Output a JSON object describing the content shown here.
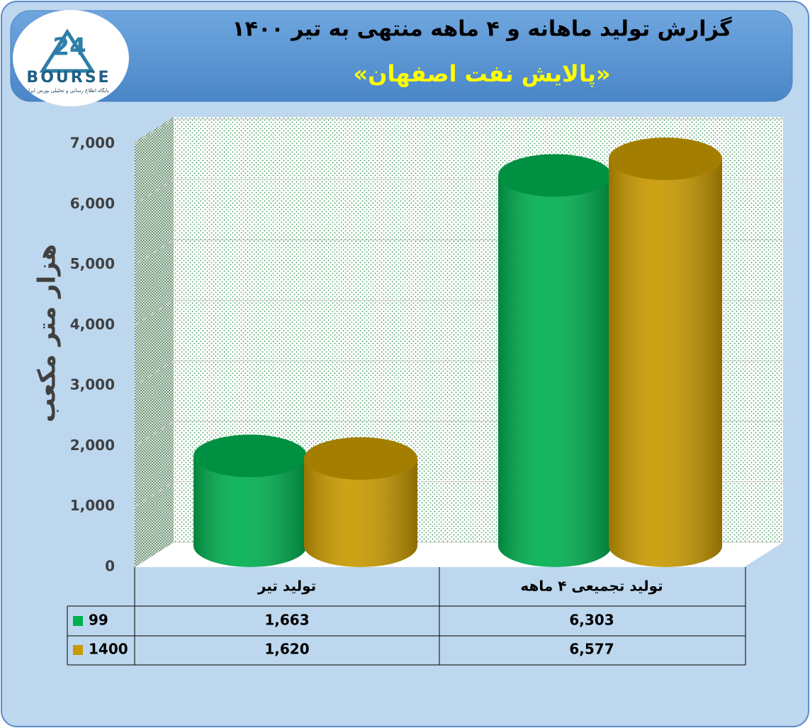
{
  "logo": {
    "number": "24",
    "text": "BOURSE",
    "tagline": "پایگاه اطلاع رسانی و تحلیلی بورس ایرا"
  },
  "chart_data": {
    "type": "bar",
    "title": "گزارش تولید ماهانه و ۴ ماهه منتهی به تیر ۱۴۰۰",
    "subtitle": "«پالایش نفت اصفهان»",
    "y_label": "هزار متر مکعب",
    "categories": [
      "تولید تیر",
      "تولید تجمیعی ۴ ماهه"
    ],
    "series": [
      {
        "name": "99",
        "color": "#00b050",
        "values": [
          1663,
          6303
        ],
        "value_labels": [
          "1,663",
          "6,303"
        ]
      },
      {
        "name": "1400",
        "color": "#c99a00",
        "values": [
          1620,
          6577
        ],
        "value_labels": [
          "1,620",
          "6,577"
        ]
      }
    ],
    "ylim": [
      0,
      7000
    ],
    "yticks": [
      0,
      {
        "value": 1000,
        "label": "1,000"
      },
      {
        "value": 2000,
        "label": "2,000"
      },
      {
        "value": 3000,
        "label": "3,000"
      },
      {
        "value": 4000,
        "label": "4,000"
      },
      {
        "value": 5000,
        "label": "5,000"
      },
      {
        "value": 6000,
        "label": "6,000"
      },
      {
        "value": 7000,
        "label": "7,000"
      }
    ],
    "grid": true
  }
}
